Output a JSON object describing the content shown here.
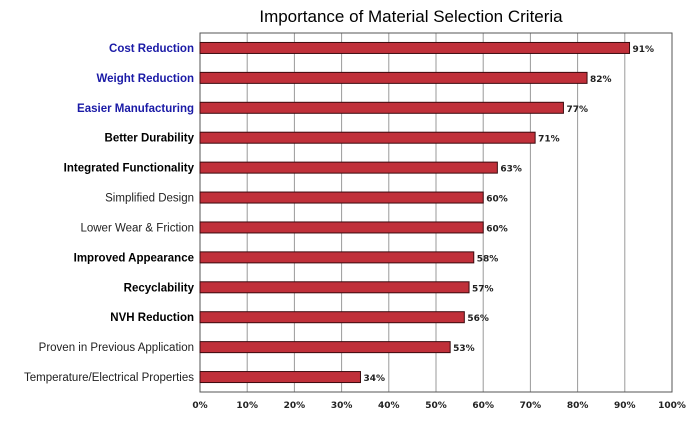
{
  "chart_data": {
    "type": "bar",
    "orientation": "horizontal",
    "title": "Importance of Material Selection Criteria",
    "xlabel": "",
    "ylabel": "",
    "xlim": [
      0,
      100
    ],
    "x_ticks": [
      "0%",
      "10%",
      "20%",
      "30%",
      "40%",
      "50%",
      "60%",
      "70%",
      "80%",
      "90%",
      "100%"
    ],
    "grid": true,
    "legend": "none",
    "categories": [
      "Cost Reduction",
      "Weight Reduction",
      "Easier Manufacturing",
      "Better Durability",
      "Integrated Functionality",
      "Simplified Design",
      "Lower Wear & Friction",
      "Improved Appearance",
      "Recyclability",
      "NVH Reduction",
      "Proven in Previous Application",
      "Temperature/Electrical Properties"
    ],
    "category_styles": [
      "blue",
      "blue",
      "blue",
      "bold",
      "bold",
      "normal",
      "normal",
      "bold",
      "bold",
      "bold",
      "normal",
      "normal"
    ],
    "values": [
      91,
      82,
      77,
      71,
      63,
      60,
      60,
      58,
      57,
      56,
      53,
      34
    ],
    "data_labels": [
      "91%",
      "82%",
      "77%",
      "71%",
      "63%",
      "60%",
      "60%",
      "58%",
      "57%",
      "56%",
      "53%",
      "34%"
    ],
    "colors": {
      "bar": "#c0303a",
      "bar_edge": "#3a0a0e",
      "category_blue": "#1a1aa6"
    }
  }
}
